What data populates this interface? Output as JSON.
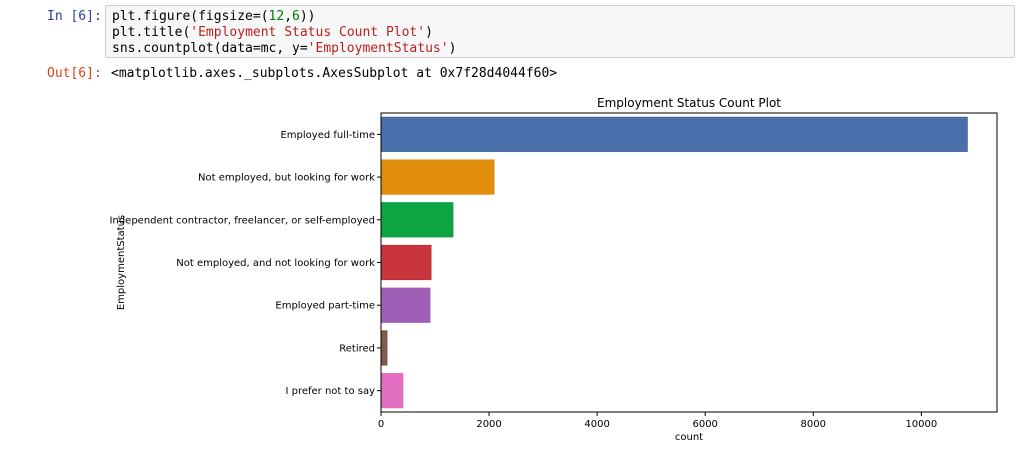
{
  "cell": {
    "in_prompt": "In [6]:",
    "code": [
      {
        "pre": "plt.figure(figsize=(",
        "num1": "12",
        "mid": ",",
        "num2": "6",
        "post": "))"
      },
      {
        "pre": "plt.title(",
        "str": "'Employment Status Count Plot'",
        "post": ")"
      },
      {
        "pre": "sns.countplot(data=mc, y=",
        "str": "'EmploymentStatus'",
        "post": ")"
      }
    ],
    "out_prompt": "Out[6]:",
    "output": "<matplotlib.axes._subplots.AxesSubplot at 0x7f28d4044f60>"
  },
  "chart_data": {
    "type": "bar",
    "orientation": "horizontal",
    "title": "Employment Status Count Plot",
    "xlabel": "count",
    "ylabel": "EmploymentStatus",
    "categories": [
      "Employed full-time",
      "Not employed, but looking for work",
      "Independent contractor, freelancer, or self-employed",
      "Not employed, and not looking for work",
      "Employed part-time",
      "Retired",
      "I prefer not to say"
    ],
    "values": [
      10850,
      2090,
      1330,
      925,
      905,
      110,
      405
    ],
    "colors": [
      "#4167a5",
      "#e08800",
      "#00a03a",
      "#c62a33",
      "#9b56b2",
      "#7a5147",
      "#e067be"
    ],
    "xlim": [
      0,
      11400
    ],
    "xticks": [
      0,
      2000,
      4000,
      6000,
      8000,
      10000
    ],
    "grid": false
  }
}
